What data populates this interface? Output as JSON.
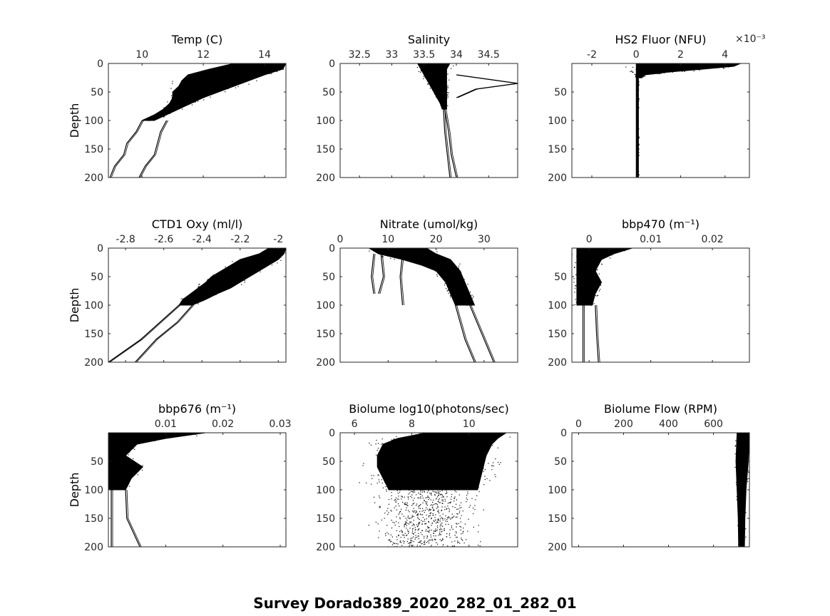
{
  "figure": {
    "suptitle": "Survey Dorado389_2020_282_01_282_01"
  },
  "chart_data": [
    {
      "type": "scatter",
      "title": "Temp (C)",
      "ylabel": "Depth",
      "xlim": [
        8.9,
        14.7
      ],
      "ylim": [
        200,
        0
      ],
      "xticks": [
        "10",
        "12",
        "14"
      ],
      "xtick_values": [
        10,
        12,
        14
      ],
      "yticks": [
        "0",
        "50",
        "100",
        "150",
        "200"
      ],
      "exponent": "",
      "profile_bands": [
        {
          "depth": [
            0,
            10,
            20,
            30,
            40,
            50,
            60,
            70,
            80,
            90,
            100
          ],
          "low": [
            13.0,
            12.2,
            11.5,
            11.3,
            11.2,
            11.0,
            11.0,
            10.9,
            10.7,
            10.4,
            10.0
          ],
          "high": [
            14.7,
            14.6,
            14.0,
            13.5,
            13.0,
            12.5,
            12.0,
            11.6,
            11.2,
            10.8,
            10.4
          ]
        }
      ],
      "profile_lines": [
        {
          "depth": [
            100,
            120,
            140,
            160,
            180,
            200
          ],
          "values": [
            10.0,
            9.8,
            9.5,
            9.4,
            9.1,
            8.95
          ]
        },
        {
          "depth": [
            100,
            120,
            140,
            160,
            180,
            200
          ],
          "values": [
            10.8,
            10.6,
            10.5,
            10.4,
            10.1,
            9.9
          ]
        }
      ]
    },
    {
      "type": "scatter",
      "title": "Salinity",
      "ylabel": "",
      "xlim": [
        32.2,
        34.95
      ],
      "ylim": [
        200,
        0
      ],
      "xticks": [
        "32.5",
        "33",
        "33.5",
        "34",
        "34.5"
      ],
      "xtick_values": [
        32.5,
        33,
        33.5,
        34,
        34.5
      ],
      "yticks": [
        "0",
        "50",
        "100",
        "150",
        "200"
      ],
      "exponent": "",
      "profile_bands": [
        {
          "depth": [
            0,
            10,
            20,
            30,
            40,
            50,
            60,
            70,
            80
          ],
          "low": [
            33.4,
            33.45,
            33.5,
            33.55,
            33.6,
            33.65,
            33.7,
            33.75,
            33.78
          ],
          "high": [
            33.9,
            33.85,
            33.85,
            33.85,
            33.85,
            33.85,
            33.85,
            33.85,
            33.85
          ]
        }
      ],
      "profile_lines": [
        {
          "depth": [
            80,
            120,
            160,
            200
          ],
          "values": [
            33.8,
            33.82,
            33.86,
            33.9
          ]
        },
        {
          "depth": [
            80,
            120,
            160,
            200
          ],
          "values": [
            33.82,
            33.88,
            33.92,
            34.0
          ]
        },
        {
          "depth": [
            20,
            35,
            45,
            60
          ],
          "values": [
            34.0,
            34.95,
            34.3,
            34.0
          ]
        }
      ]
    },
    {
      "type": "scatter",
      "title": "HS2 Fluor (NFU)",
      "ylabel": "",
      "xlim": [
        -0.0029,
        0.0051
      ],
      "ylim": [
        200,
        0
      ],
      "xticks": [
        "-2",
        "0",
        "2",
        "4"
      ],
      "xtick_values": [
        -0.002,
        0,
        0.002,
        0.004
      ],
      "yticks": [
        "50",
        "100",
        "150",
        "200"
      ],
      "ytick_values": [
        50,
        100,
        150,
        200
      ],
      "exponent": "×10⁻³",
      "profile_bands": [
        {
          "depth": [
            0,
            5,
            10,
            15,
            20,
            25
          ],
          "low": [
            0.0,
            0.0,
            0.0,
            0.0,
            0.0,
            0.0
          ],
          "high": [
            0.0047,
            0.0044,
            0.003,
            0.0015,
            0.0004,
            0.0002
          ]
        },
        {
          "depth": [
            25,
            100,
            200
          ],
          "low": [
            0.0,
            0.0,
            0.0
          ],
          "high": [
            0.0001,
            0.0001,
            0.0001
          ]
        }
      ],
      "profile_lines": []
    },
    {
      "type": "scatter",
      "title": "CTD1 Oxy (ml/l)",
      "ylabel": "Depth",
      "xlim": [
        -2.89,
        -1.96
      ],
      "ylim": [
        200,
        0
      ],
      "xticks": [
        "-2.8",
        "-2.6",
        "-2.4",
        "-2.2",
        "-2"
      ],
      "xtick_values": [
        -2.8,
        -2.6,
        -2.4,
        -2.2,
        -2.0
      ],
      "yticks": [
        "0",
        "50",
        "100",
        "150",
        "200"
      ],
      "exponent": "",
      "profile_bands": [
        {
          "depth": [
            0,
            10,
            20,
            30,
            40,
            50,
            60,
            70,
            80,
            90,
            100
          ],
          "low": [
            -2.05,
            -2.1,
            -2.2,
            -2.25,
            -2.3,
            -2.35,
            -2.38,
            -2.42,
            -2.46,
            -2.5,
            -2.52
          ],
          "high": [
            -1.96,
            -1.97,
            -2.0,
            -2.05,
            -2.1,
            -2.15,
            -2.2,
            -2.25,
            -2.32,
            -2.38,
            -2.45
          ]
        }
      ],
      "profile_lines": [
        {
          "depth": [
            100,
            130,
            160,
            200
          ],
          "values": [
            -2.52,
            -2.62,
            -2.72,
            -2.89
          ]
        },
        {
          "depth": [
            100,
            130,
            160,
            200
          ],
          "values": [
            -2.45,
            -2.53,
            -2.64,
            -2.75
          ]
        }
      ]
    },
    {
      "type": "scatter",
      "title": "Nitrate (umol/kg)",
      "ylabel": "",
      "xlim": [
        0,
        37
      ],
      "ylim": [
        200,
        0
      ],
      "xticks": [
        "0",
        "10",
        "20",
        "30"
      ],
      "xtick_values": [
        0,
        10,
        20,
        30
      ],
      "yticks": [
        "0",
        "50",
        "100",
        "150",
        "200"
      ],
      "exponent": "",
      "profile_bands": [
        {
          "depth": [
            0,
            10,
            20,
            30,
            40,
            50,
            60,
            70,
            80,
            90,
            100
          ],
          "low": [
            6,
            8,
            13,
            17,
            20,
            21,
            22,
            22.5,
            23,
            23.5,
            24
          ],
          "high": [
            18,
            20,
            23,
            24,
            25,
            25.5,
            26,
            26.5,
            27,
            27.5,
            28
          ]
        }
      ],
      "profile_lines": [
        {
          "depth": [
            100,
            130,
            160,
            200
          ],
          "values": [
            24,
            25,
            26,
            28
          ]
        },
        {
          "depth": [
            100,
            130,
            160,
            200
          ],
          "values": [
            27,
            28.5,
            30,
            32
          ]
        },
        {
          "depth": [
            10,
            50,
            80
          ],
          "values": [
            7,
            6.5,
            7
          ]
        },
        {
          "depth": [
            10,
            50,
            80
          ],
          "values": [
            8.5,
            9,
            8
          ]
        },
        {
          "depth": [
            10,
            50,
            100
          ],
          "values": [
            13,
            12.5,
            13
          ]
        }
      ]
    },
    {
      "type": "scatter",
      "title": "bbp470 (m⁻¹)",
      "ylabel": "",
      "xlim": [
        -0.0028,
        0.026
      ],
      "ylim": [
        200,
        0
      ],
      "xticks": [
        "0",
        "0.01",
        "0.02"
      ],
      "xtick_values": [
        0,
        0.01,
        0.02
      ],
      "yticks": [
        "50",
        "100",
        "150",
        "200"
      ],
      "ytick_values": [
        50,
        100,
        150,
        200
      ],
      "exponent": "",
      "profile_bands": [
        {
          "depth": [
            0,
            10,
            20,
            40,
            60,
            80,
            100
          ],
          "low": [
            -0.002,
            -0.002,
            -0.002,
            -0.002,
            -0.002,
            -0.002,
            -0.002
          ],
          "high": [
            0.007,
            0.004,
            0.002,
            0.001,
            0.002,
            0.001,
            0.0005
          ]
        }
      ],
      "profile_lines": [
        {
          "depth": [
            100,
            150,
            200
          ],
          "values": [
            -0.001,
            -0.001,
            -0.001
          ]
        },
        {
          "depth": [
            100,
            150,
            200
          ],
          "values": [
            0.001,
            0.0012,
            0.0015
          ]
        }
      ]
    },
    {
      "type": "scatter",
      "title": "bbp676 (m⁻¹)",
      "ylabel": "Depth",
      "xlim": [
        0,
        0.031
      ],
      "ylim": [
        200,
        0
      ],
      "xticks": [
        "0.01",
        "0.02",
        "0.03"
      ],
      "xtick_values": [
        0.01,
        0.02,
        0.03
      ],
      "yticks": [
        "50",
        "100",
        "150",
        "200"
      ],
      "ytick_values": [
        50,
        100,
        150,
        200
      ],
      "exponent": "",
      "profile_bands": [
        {
          "depth": [
            0,
            10,
            20,
            40,
            60,
            80,
            100
          ],
          "low": [
            0.0,
            0.0,
            0.0,
            0.0,
            0.0,
            0.0,
            0.0
          ],
          "high": [
            0.017,
            0.01,
            0.005,
            0.003,
            0.006,
            0.004,
            0.003
          ]
        }
      ],
      "profile_lines": [
        {
          "depth": [
            100,
            150,
            200
          ],
          "values": [
            0.0005,
            0.0005,
            0.0005
          ]
        },
        {
          "depth": [
            100,
            150,
            200
          ],
          "values": [
            0.003,
            0.0032,
            0.0055
          ]
        }
      ]
    },
    {
      "type": "scatter",
      "title": "Biolume log10(photons/sec)",
      "ylabel": "",
      "xlim": [
        5.5,
        11.7
      ],
      "ylim": [
        200,
        0
      ],
      "xticks": [
        "6",
        "8",
        "10"
      ],
      "xtick_values": [
        6,
        8,
        10
      ],
      "yticks": [
        "0",
        "50",
        "100",
        "150",
        "200"
      ],
      "exponent": "",
      "profile_bands": [
        {
          "depth": [
            0,
            10,
            20,
            40,
            60,
            80,
            100
          ],
          "low": [
            8.5,
            7.5,
            7.0,
            6.8,
            6.8,
            7.0,
            7.2
          ],
          "high": [
            11.3,
            11.0,
            10.8,
            10.6,
            10.5,
            10.4,
            10.3
          ]
        }
      ],
      "profile_lines": [],
      "scatter_regions": [
        {
          "depth_range": [
            10,
            100
          ],
          "x_range": [
            5.8,
            11.2
          ],
          "density": "medium"
        },
        {
          "depth_range": [
            100,
            200
          ],
          "x_range": [
            6.2,
            10.8
          ],
          "density": "sparse"
        }
      ]
    },
    {
      "type": "scatter",
      "title": "Biolume Flow (RPM)",
      "ylabel": "",
      "xlim": [
        -30,
        760
      ],
      "ylim": [
        200,
        0
      ],
      "xticks": [
        "0",
        "200",
        "400",
        "600"
      ],
      "xtick_values": [
        0,
        200,
        400,
        600
      ],
      "yticks": [
        "0",
        "50",
        "100",
        "150",
        "200"
      ],
      "exponent": "",
      "profile_bands": [
        {
          "depth": [
            0,
            50,
            100,
            150,
            200
          ],
          "low": [
            705,
            700,
            705,
            710,
            712
          ],
          "high": [
            760,
            755,
            745,
            740,
            738
          ]
        }
      ],
      "profile_lines": []
    }
  ]
}
